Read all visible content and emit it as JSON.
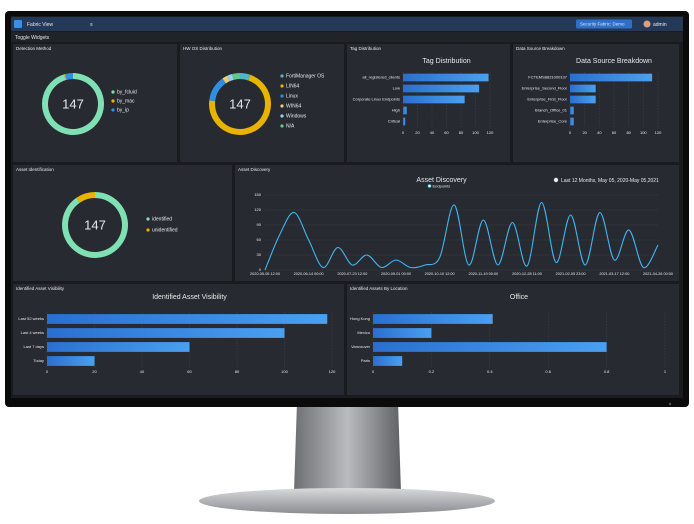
{
  "header": {
    "title": "Fabric View",
    "fabric": "Security Fabric: Demo",
    "user": "admin"
  },
  "toolbar": {
    "label": "Toggle Widgets"
  },
  "widgets": [
    {
      "title": "Detection Method",
      "chart": {
        "type": "donut",
        "total": 147,
        "categories": [
          "by_fcluid",
          "by_mac",
          "by_ip"
        ],
        "values": [
          140,
          1,
          6
        ],
        "colors": [
          "#7fe0b4",
          "#f0b400",
          "#2f8fe0"
        ]
      }
    },
    {
      "title": "HW OS Distribution",
      "chart": {
        "type": "donut",
        "total": 147,
        "categories": [
          "FortiManager OS",
          "LIN64",
          "Linux",
          "WIN64",
          "Windows",
          "N/A"
        ],
        "values": [
          8,
          105,
          20,
          4,
          4,
          6
        ],
        "colors": [
          "#4fb8c8",
          "#e8b400",
          "#2f8fe0",
          "#e8d070",
          "#9ad0f0",
          "#5ec98a"
        ]
      }
    },
    {
      "title": "Tag Distribution",
      "chart": {
        "type": "hbar",
        "title": "Tag Distribution",
        "categories": [
          "all_registered_clients",
          "Low",
          "Corporate Linux Endpoints",
          "High",
          "Critical"
        ],
        "values": [
          118,
          105,
          85,
          5,
          3
        ],
        "color": "#3a8ee6",
        "xlim": [
          0,
          120
        ],
        "xticks": [
          0,
          20,
          40,
          60,
          80,
          100,
          120
        ],
        "grid": true
      }
    },
    {
      "title": "Data Source Breakdown",
      "chart": {
        "type": "hbar",
        "title": "Data Source Breakdown",
        "categories": [
          "FCTEMS8821000137",
          "Enterprise_Second_Floor",
          "Enterprise_First_Floor",
          "Branch_Office_01",
          "Enterprise_Core"
        ],
        "values": [
          112,
          35,
          35,
          5,
          5
        ],
        "color": "#3a8ee6",
        "xlim": [
          0,
          120
        ],
        "xticks": [
          0,
          20,
          40,
          60,
          80,
          100,
          120
        ],
        "grid": true
      }
    },
    {
      "title": "Asset Identification",
      "chart": {
        "type": "donut",
        "total": 147,
        "categories": [
          "identified",
          "unidentified"
        ],
        "values": [
          133,
          14
        ],
        "colors": [
          "#7fe0b4",
          "#e8b400"
        ]
      }
    },
    {
      "title": "Asset Discovery",
      "chart": {
        "type": "line",
        "title": "Asset Discovery",
        "subtitle": "Last 12 Months, May 05, 2020-May 05,2021",
        "categories": [
          "2020-05-05 12:00",
          null,
          null,
          "2020-06-14 00:00",
          null,
          null,
          "2020-07-23 12:00",
          null,
          null,
          "2020-09-01 00:00",
          null,
          null,
          "2020-10-10 12:00",
          null,
          null,
          "2020-11-19 00:00",
          null,
          null,
          "2020-12-28 11:00",
          null,
          null,
          "2021-02-05 23:00",
          null,
          null,
          "2021-03-17 12:00",
          null,
          null,
          "2021-04-26 00:00"
        ],
        "series": [
          {
            "name": "Endpoints",
            "color": "#3fb6f0",
            "values": [
              0,
              70,
              115,
              60,
              5,
              45,
              10,
              30,
              5,
              20,
              5,
              10,
              25,
              130,
              10,
              100,
              10,
              95,
              8,
              135,
              15,
              110,
              10,
              115,
              20,
              80,
              5,
              50
            ]
          }
        ],
        "ylim": [
          0,
          150
        ],
        "yticks": [
          0,
          30,
          60,
          90,
          120,
          150
        ],
        "grid": true
      }
    },
    {
      "title": "Identified Asset Visibility",
      "chart": {
        "type": "hbar",
        "title": "Identified Asset Visibility",
        "categories": [
          "Last 52 weeks",
          "Last 4 weeks",
          "Last 7 days",
          "Today"
        ],
        "values": [
          118,
          100,
          60,
          20
        ],
        "color": "#3a8ee6",
        "xlim": [
          0,
          120
        ],
        "xticks": [
          0,
          20,
          40,
          60,
          80,
          100,
          120
        ],
        "grid": true
      }
    },
    {
      "title": "Identified Assets By Location",
      "chart": {
        "type": "hbar",
        "title": "Office",
        "categories": [
          "Hong Kong",
          "Mexico",
          "Vancouver",
          "Paris"
        ],
        "values": [
          0.41,
          0.2,
          0.8,
          0.1
        ],
        "color": "#3a8ee6",
        "xlim": [
          0,
          1
        ],
        "xticks": [
          0,
          0.2,
          0.4,
          0.6,
          0.8,
          1
        ],
        "grid": true
      }
    }
  ]
}
